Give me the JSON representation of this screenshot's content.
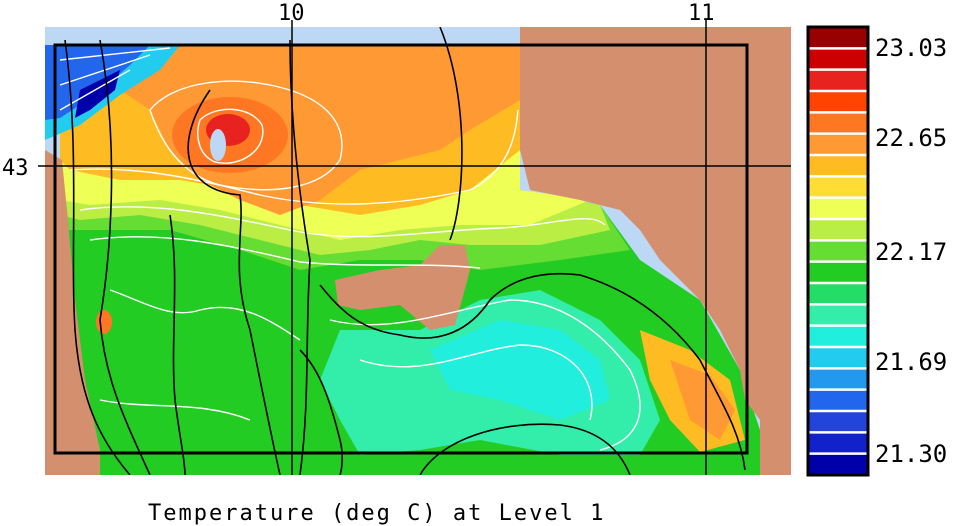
{
  "chart_data": {
    "type": "heatmap",
    "title": "Temperature (deg C) at Level 1",
    "x_ticks": [
      {
        "value": 10,
        "label": "10"
      },
      {
        "value": 11,
        "label": "11"
      }
    ],
    "y_ticks": [
      {
        "value": 43,
        "label": "43"
      }
    ],
    "colorbar": {
      "min": 21.3,
      "max": 23.03,
      "labels": [
        "23.03",
        "22.65",
        "22.17",
        "21.69",
        "21.30"
      ],
      "colors": [
        "#990000",
        "#cc0000",
        "#e8221e",
        "#ff4400",
        "#ff7722",
        "#ff9933",
        "#ffbb22",
        "#ffdd33",
        "#eeff55",
        "#bbee44",
        "#66dd33",
        "#22cc22",
        "#22dd66",
        "#33eeaa",
        "#22eedd",
        "#22ccee",
        "#2299ee",
        "#2266ee",
        "#2244dd",
        "#1122cc",
        "#0000aa"
      ]
    },
    "land_color": "#d4906e",
    "no_data_color": "#bcd8f4",
    "grid": true
  }
}
